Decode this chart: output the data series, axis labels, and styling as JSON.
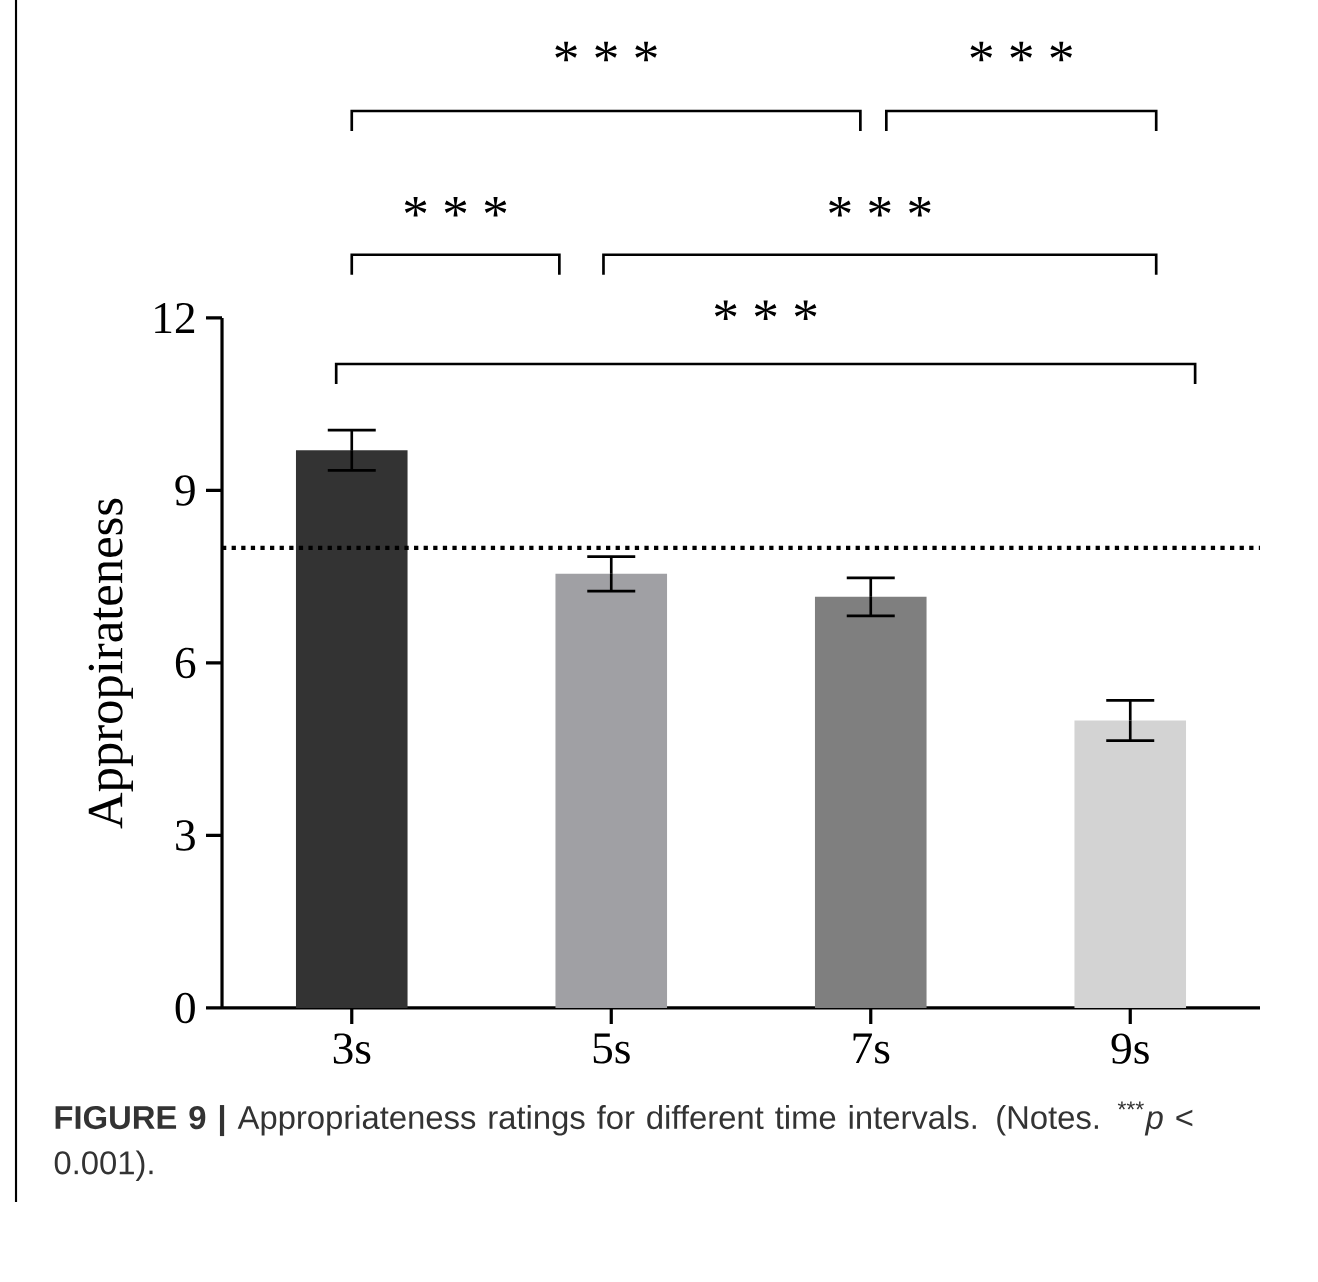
{
  "chart_data": {
    "type": "bar",
    "ylabel": "Appropirateness",
    "categories": [
      "3s",
      "5s",
      "7s",
      "9s"
    ],
    "values": [
      9.7,
      7.55,
      7.15,
      5.0
    ],
    "errors": [
      0.35,
      0.3,
      0.33,
      0.35
    ],
    "colors": [
      "#333333",
      "#a0a0a4",
      "#7f7f7f",
      "#d3d3d3"
    ],
    "ylim": [
      0,
      12
    ],
    "yticks": [
      0,
      3,
      6,
      9,
      12
    ],
    "ref_lines": [
      {
        "axis": "y",
        "value": 8,
        "line_style": "dotted",
        "color": "#000000"
      }
    ],
    "grid": false,
    "annotations": [
      "* * *",
      "* * *",
      "* * *",
      "* * *",
      "* * *",
      "**FIGURE 9 |** Appropriateness ratings for different time intervals. (Notes. $^{***}$*p* < 0.001)."
    ]
  }
}
